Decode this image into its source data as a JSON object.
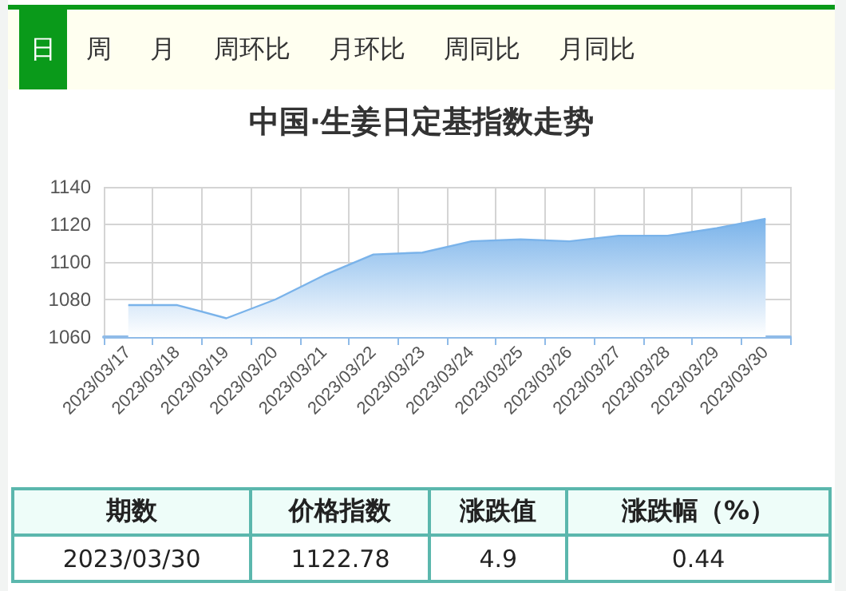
{
  "chart_data": {
    "type": "area",
    "title": "中国·生姜日定基指数走势",
    "categories": [
      "2023/03/17",
      "2023/03/18",
      "2023/03/19",
      "2023/03/20",
      "2023/03/21",
      "2023/03/22",
      "2023/03/23",
      "2023/03/24",
      "2023/03/25",
      "2023/03/26",
      "2023/03/27",
      "2023/03/28",
      "2023/03/29",
      "2023/03/30"
    ],
    "series": [
      {
        "color": "#7ab3ea",
        "values": [
          1077,
          1077,
          1070,
          1080,
          1093,
          1104,
          1105,
          1111,
          1112,
          1111,
          1114,
          1114,
          1118,
          1123
        ]
      }
    ],
    "ylim": [
      1060,
      1140
    ],
    "yticks": [
      1060,
      1080,
      1100,
      1120,
      1140
    ],
    "grid": true,
    "marker": "none",
    "annotations": [
      "日",
      "周",
      "月",
      "周环比",
      "月环比",
      "周同比",
      "月同比",
      "期数",
      "价格指数",
      "涨跌值",
      "涨跌幅（%）",
      "2023/03/30",
      "1122.78",
      "4.9",
      "0.44"
    ]
  }
}
